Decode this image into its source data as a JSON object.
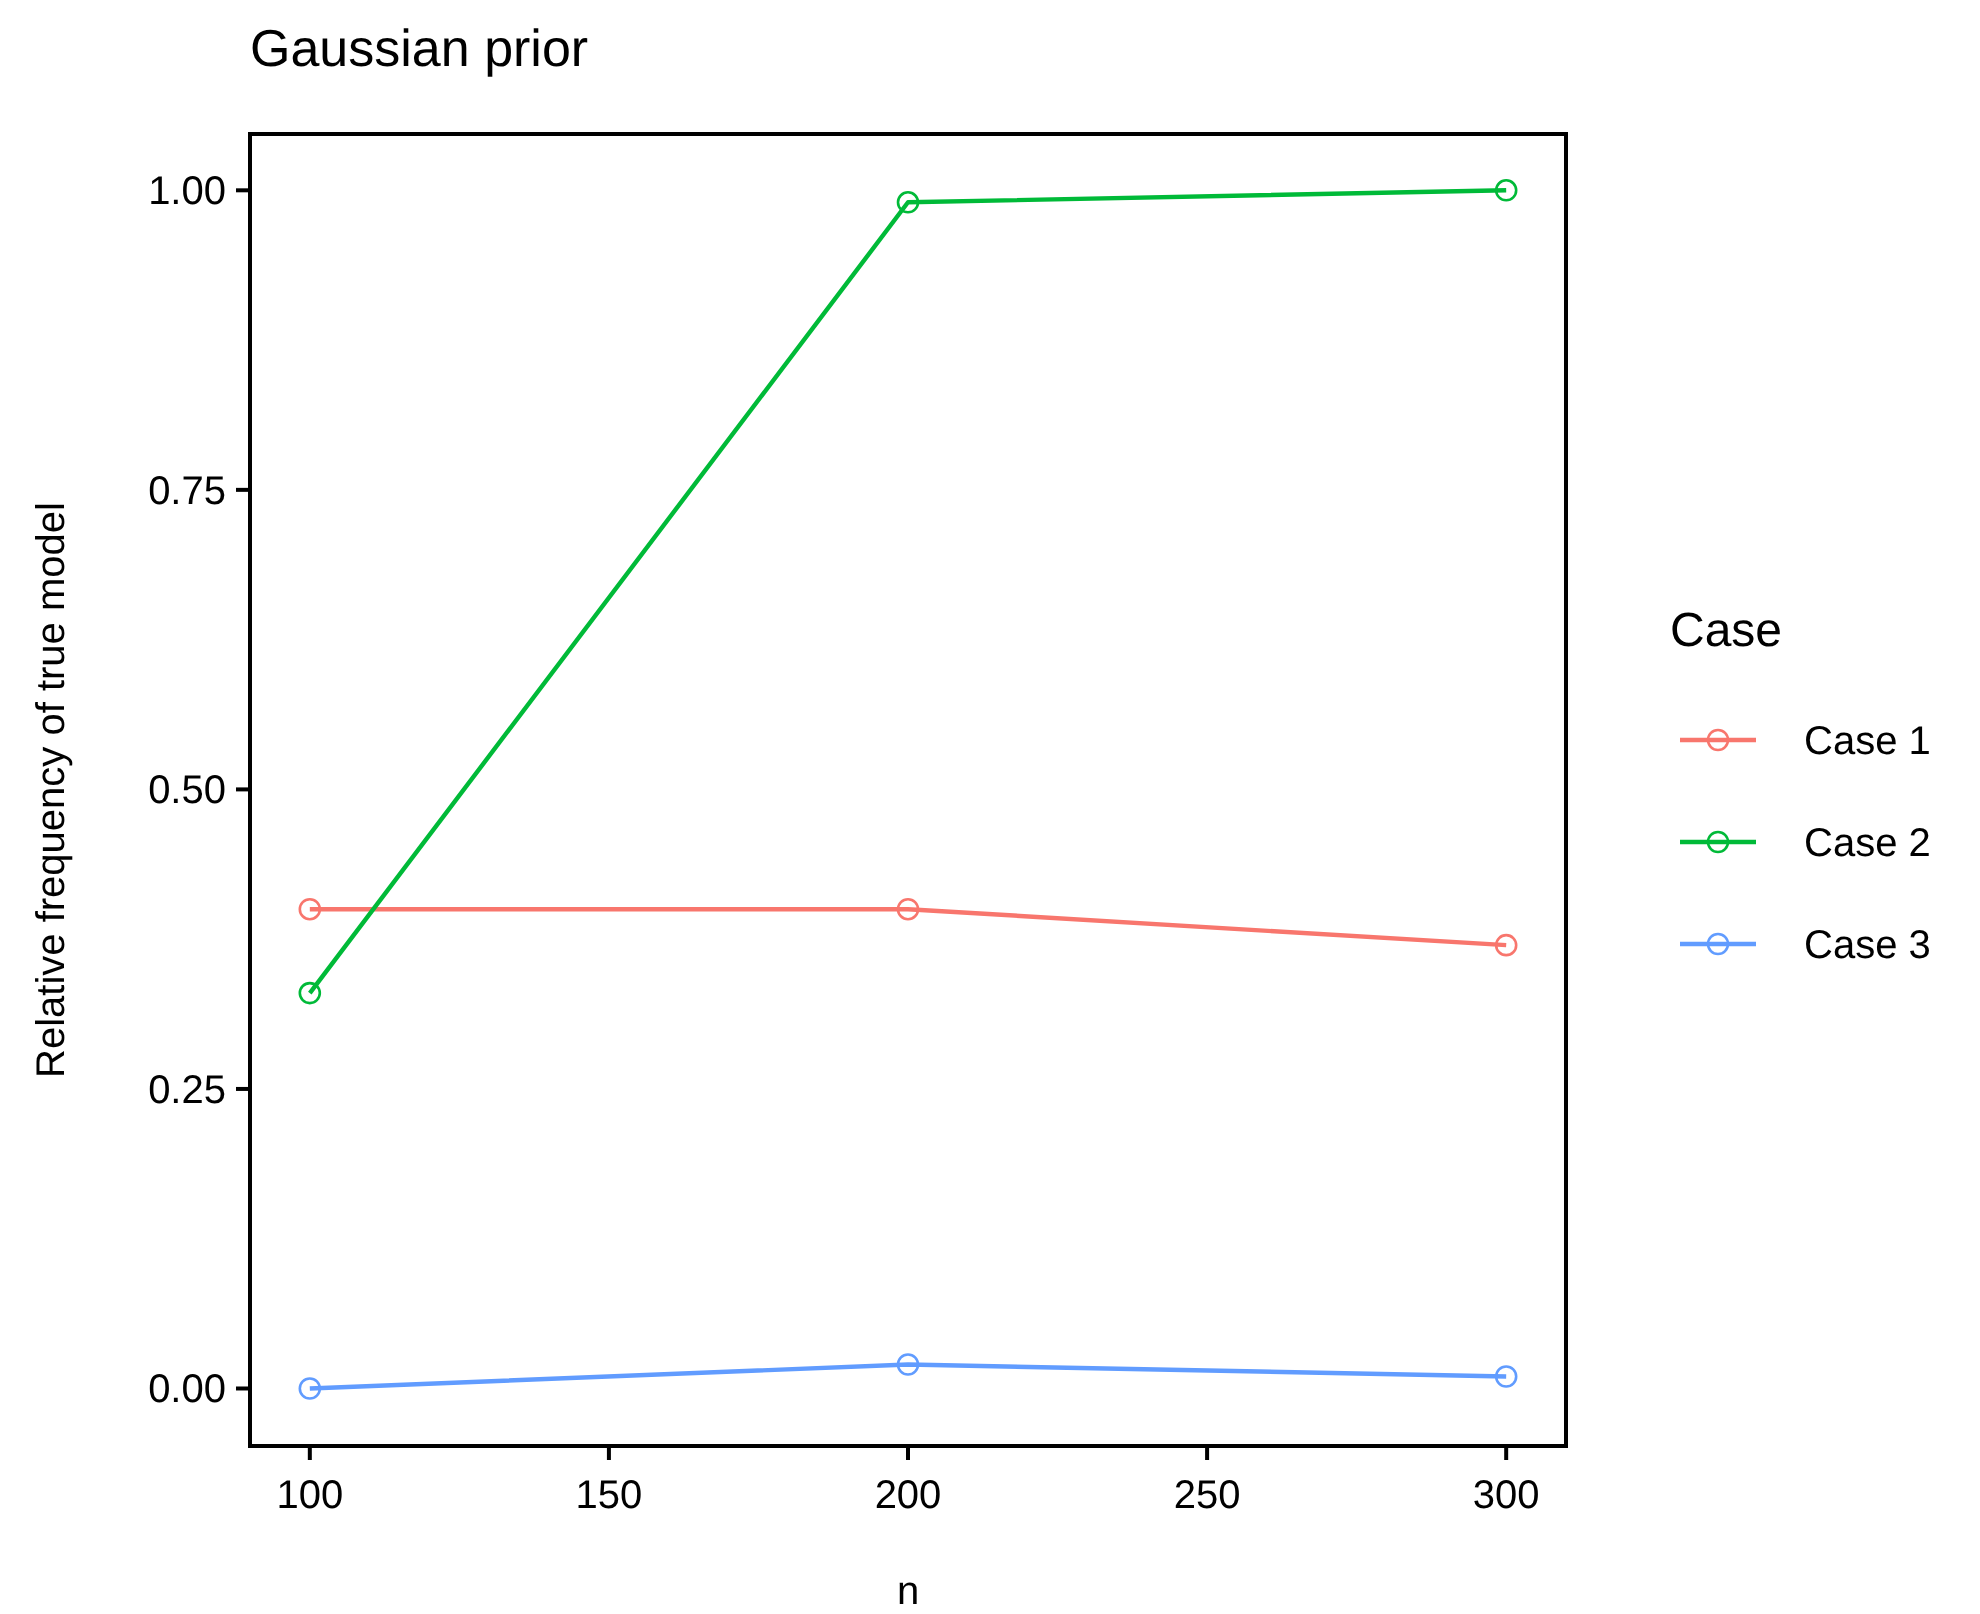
{
  "chart_data": {
    "type": "line",
    "title": "Gaussian prior",
    "xlabel": "n",
    "ylabel": "Relative frequency of true model",
    "legend_title": "Case",
    "x": [
      100,
      200,
      300
    ],
    "series": [
      {
        "name": "Case 1",
        "color": "#f8766d",
        "values": [
          0.4,
          0.4,
          0.37
        ]
      },
      {
        "name": "Case 2",
        "color": "#00ba38",
        "values": [
          0.33,
          0.99,
          1.0
        ]
      },
      {
        "name": "Case 3",
        "color": "#619cff",
        "values": [
          0.0,
          0.02,
          0.01
        ]
      }
    ],
    "xlim": [
      90,
      310
    ],
    "xticks": [
      100,
      150,
      200,
      250,
      300
    ],
    "ylim": [
      -0.048,
      1.047
    ],
    "yticks": [
      {
        "value": 0,
        "label": "0.00"
      },
      {
        "value": 0.25,
        "label": "0.25"
      },
      {
        "value": 0.5,
        "label": "0.50"
      },
      {
        "value": 0.75,
        "label": "0.75"
      },
      {
        "value": 1,
        "label": "1.00"
      }
    ],
    "marker": "circle",
    "line_style": "solid",
    "legend": "right"
  }
}
